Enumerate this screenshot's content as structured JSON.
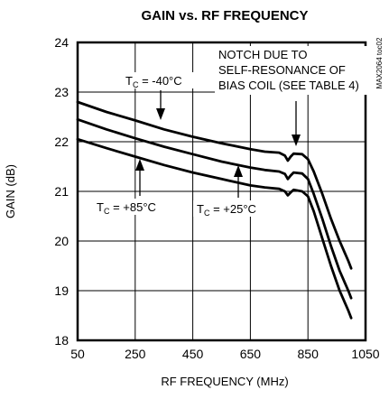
{
  "chart_data": {
    "type": "line",
    "title": "GAIN vs. RF FREQUENCY",
    "xlabel": "RF FREQUENCY (MHz)",
    "ylabel": "GAIN (dB)",
    "xlim": [
      50,
      1050
    ],
    "ylim": [
      18,
      24
    ],
    "x_ticks": [
      50,
      250,
      450,
      650,
      850,
      1050
    ],
    "y_ticks": [
      18,
      19,
      20,
      21,
      22,
      23,
      24
    ],
    "x_tick_labels": [
      "50",
      "250",
      "450",
      "650",
      "850",
      "1050"
    ],
    "y_tick_labels": [
      "18",
      "19",
      "20",
      "21",
      "22",
      "23",
      "24"
    ],
    "grid": true,
    "part_number": "MAX2064 toc02",
    "series": [
      {
        "label_prefix": "T",
        "label_sub": "C",
        "label_value": " = -40°C",
        "x": [
          50,
          150,
          250,
          350,
          450,
          550,
          650,
          700,
          750,
          770,
          780,
          790,
          800,
          830,
          850,
          870,
          900,
          930,
          960,
          990,
          1000
        ],
        "y": [
          22.8,
          22.6,
          22.43,
          22.25,
          22.1,
          21.97,
          21.85,
          21.8,
          21.78,
          21.72,
          21.62,
          21.7,
          21.76,
          21.75,
          21.65,
          21.4,
          20.95,
          20.45,
          20.0,
          19.6,
          19.45
        ]
      },
      {
        "label_prefix": "T",
        "label_sub": "C",
        "label_value": " = +25°C",
        "x": [
          50,
          150,
          250,
          350,
          450,
          550,
          650,
          700,
          750,
          770,
          780,
          790,
          800,
          830,
          850,
          870,
          900,
          930,
          960,
          990,
          1000
        ],
        "y": [
          22.45,
          22.25,
          22.07,
          21.9,
          21.75,
          21.6,
          21.48,
          21.43,
          21.4,
          21.35,
          21.25,
          21.32,
          21.38,
          21.36,
          21.25,
          20.95,
          20.45,
          19.9,
          19.4,
          19.0,
          18.85
        ]
      },
      {
        "label_prefix": "T",
        "label_sub": "C",
        "label_value": " = +85°C",
        "x": [
          50,
          150,
          250,
          350,
          450,
          550,
          650,
          700,
          750,
          770,
          780,
          790,
          800,
          830,
          850,
          870,
          900,
          930,
          960,
          990,
          1000
        ],
        "y": [
          22.05,
          21.87,
          21.7,
          21.53,
          21.38,
          21.25,
          21.12,
          21.08,
          21.05,
          21.0,
          20.92,
          20.98,
          21.03,
          21.0,
          20.9,
          20.6,
          20.05,
          19.5,
          19.0,
          18.6,
          18.45
        ]
      }
    ],
    "annotations": {
      "notch_lines": [
        "NOTCH DUE TO",
        "SELF-RESONANCE OF",
        "BIAS COIL (SEE TABLE 4)"
      ]
    }
  }
}
